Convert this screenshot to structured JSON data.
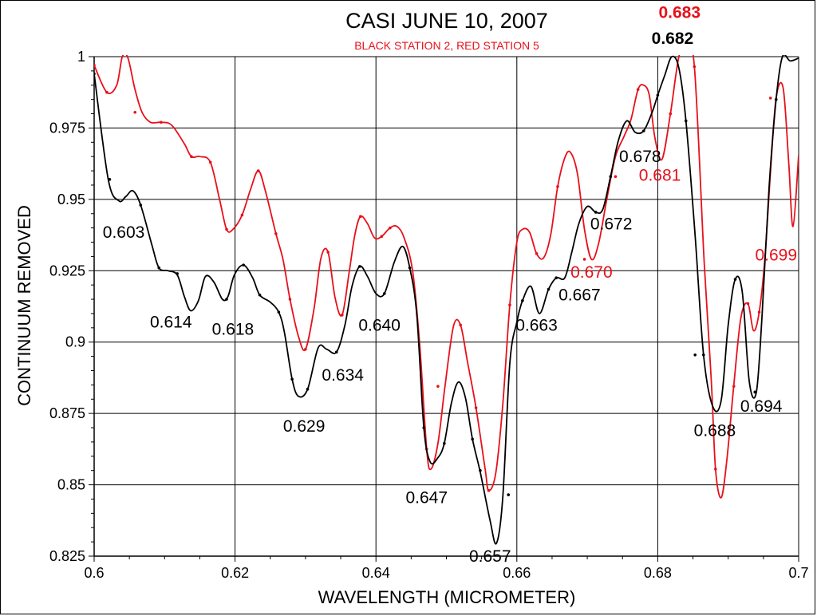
{
  "colors": {
    "station2": "#000000",
    "station5": "#e8101a",
    "grid": "#000000",
    "background": "#ffffff"
  },
  "chart_data": {
    "type": "line",
    "title": "CASI JUNE 10, 2007",
    "subtitle": "BLACK STATION 2, RED STATION 5",
    "xlabel": "WAVELENGTH (MICROMETER)",
    "ylabel": "CONTINUUM REMOVED",
    "xlim": [
      0.6,
      0.7
    ],
    "ylim": [
      0.825,
      1.0
    ],
    "grid": true,
    "x_ticks": [
      0.6,
      0.62,
      0.64,
      0.66,
      0.68,
      0.7
    ],
    "x_tick_labels": [
      "0.6",
      "0.62",
      "0.64",
      "0.66",
      "0.68",
      "0.7"
    ],
    "y_ticks": [
      0.825,
      0.85,
      0.875,
      0.9,
      0.925,
      0.95,
      0.975,
      1.0
    ],
    "y_tick_labels": [
      "0.825",
      "0.85",
      "0.875",
      "0.9",
      "0.925",
      "0.95",
      "0.975",
      "1"
    ],
    "series": [
      {
        "color": "#000000",
        "points": [
          [
            0.6,
            0.994
          ],
          [
            0.602,
            0.957
          ],
          [
            0.6035,
            0.9495
          ],
          [
            0.6045,
            0.951
          ],
          [
            0.6055,
            0.953
          ],
          [
            0.6066,
            0.948
          ],
          [
            0.6082,
            0.934
          ],
          [
            0.6092,
            0.926
          ],
          [
            0.6105,
            0.925
          ],
          [
            0.6118,
            0.9235
          ],
          [
            0.6128,
            0.916
          ],
          [
            0.6137,
            0.911
          ],
          [
            0.6148,
            0.9145
          ],
          [
            0.6158,
            0.923
          ],
          [
            0.617,
            0.921
          ],
          [
            0.6182,
            0.915
          ],
          [
            0.619,
            0.916
          ],
          [
            0.6199,
            0.9235
          ],
          [
            0.6212,
            0.927
          ],
          [
            0.6225,
            0.9225
          ],
          [
            0.6235,
            0.9165
          ],
          [
            0.625,
            0.914
          ],
          [
            0.6262,
            0.9105
          ],
          [
            0.627,
            0.9035
          ],
          [
            0.6281,
            0.887
          ],
          [
            0.629,
            0.881
          ],
          [
            0.6303,
            0.8835
          ],
          [
            0.6318,
            0.898
          ],
          [
            0.633,
            0.8975
          ],
          [
            0.6344,
            0.8965
          ],
          [
            0.6356,
            0.906
          ],
          [
            0.6366,
            0.9195
          ],
          [
            0.6377,
            0.9265
          ],
          [
            0.6388,
            0.923
          ],
          [
            0.64,
            0.917
          ],
          [
            0.6412,
            0.917
          ],
          [
            0.6426,
            0.928
          ],
          [
            0.6438,
            0.9335
          ],
          [
            0.6448,
            0.926
          ],
          [
            0.6458,
            0.9095
          ],
          [
            0.6468,
            0.87
          ],
          [
            0.6477,
            0.858
          ],
          [
            0.6488,
            0.8595
          ],
          [
            0.6497,
            0.8645
          ],
          [
            0.6507,
            0.8785
          ],
          [
            0.6517,
            0.886
          ],
          [
            0.6527,
            0.8805
          ],
          [
            0.6537,
            0.866
          ],
          [
            0.6548,
            0.8545
          ],
          [
            0.6562,
            0.8375
          ],
          [
            0.6571,
            0.8295
          ],
          [
            0.658,
            0.8455
          ],
          [
            0.659,
            0.8925
          ],
          [
            0.66,
            0.907
          ],
          [
            0.6608,
            0.9145
          ],
          [
            0.662,
            0.9195
          ],
          [
            0.6632,
            0.91
          ],
          [
            0.6645,
            0.9185
          ],
          [
            0.6656,
            0.9225
          ],
          [
            0.6668,
            0.9225
          ],
          [
            0.6678,
            0.9315
          ],
          [
            0.6688,
            0.9415
          ],
          [
            0.67,
            0.9475
          ],
          [
            0.6712,
            0.9455
          ],
          [
            0.6722,
            0.9465
          ],
          [
            0.6733,
            0.958
          ],
          [
            0.6744,
            0.9705
          ],
          [
            0.6756,
            0.9775
          ],
          [
            0.6768,
            0.9735
          ],
          [
            0.678,
            0.974
          ],
          [
            0.6792,
            0.9805
          ],
          [
            0.68,
            0.9865
          ],
          [
            0.681,
            0.9935
          ],
          [
            0.682,
            1.0
          ],
          [
            0.683,
            0.996
          ],
          [
            0.684,
            0.9775
          ],
          [
            0.6853,
            0.9375
          ],
          [
            0.6865,
            0.8955
          ],
          [
            0.6878,
            0.8775
          ],
          [
            0.689,
            0.8795
          ],
          [
            0.69,
            0.906
          ],
          [
            0.691,
            0.922
          ],
          [
            0.692,
            0.9175
          ],
          [
            0.693,
            0.886
          ],
          [
            0.694,
            0.8825
          ],
          [
            0.6948,
            0.909
          ],
          [
            0.6958,
            0.954
          ],
          [
            0.6968,
            0.985
          ],
          [
            0.6977,
            1.0
          ],
          [
            0.6988,
            0.9985
          ],
          [
            0.7,
            0.9995
          ]
        ],
        "markers": [
          [
            0.6,
            0.994
          ],
          [
            0.6022,
            0.957
          ],
          [
            0.6066,
            0.948
          ],
          [
            0.6092,
            0.926
          ],
          [
            0.6118,
            0.924
          ],
          [
            0.6188,
            0.915
          ],
          [
            0.6212,
            0.927
          ],
          [
            0.6235,
            0.9165
          ],
          [
            0.6262,
            0.9105
          ],
          [
            0.6281,
            0.887
          ],
          [
            0.6303,
            0.8835
          ],
          [
            0.6344,
            0.8965
          ],
          [
            0.6377,
            0.9265
          ],
          [
            0.6412,
            0.917
          ],
          [
            0.6448,
            0.926
          ],
          [
            0.6468,
            0.87
          ],
          [
            0.6497,
            0.8645
          ],
          [
            0.6537,
            0.866
          ],
          [
            0.6548,
            0.855
          ],
          [
            0.6588,
            0.8465
          ],
          [
            0.6608,
            0.9145
          ],
          [
            0.6645,
            0.9185
          ],
          [
            0.6656,
            0.9225
          ],
          [
            0.6712,
            0.9455
          ],
          [
            0.6733,
            0.958
          ],
          [
            0.678,
            0.974
          ],
          [
            0.68,
            0.9865
          ],
          [
            0.684,
            0.9775
          ],
          [
            0.6853,
            0.8955
          ],
          [
            0.6865,
            0.8955
          ],
          [
            0.691,
            0.922
          ],
          [
            0.6938,
            0.8825
          ],
          [
            0.6968,
            0.985
          ]
        ]
      },
      {
        "color": "#e8101a",
        "points": [
          [
            0.6,
            0.997
          ],
          [
            0.6018,
            0.9875
          ],
          [
            0.6032,
            0.99
          ],
          [
            0.604,
            1.0
          ],
          [
            0.6048,
            0.9995
          ],
          [
            0.6058,
            0.9885
          ],
          [
            0.6068,
            0.9805
          ],
          [
            0.608,
            0.977
          ],
          [
            0.6095,
            0.977
          ],
          [
            0.611,
            0.976
          ],
          [
            0.6128,
            0.9695
          ],
          [
            0.6138,
            0.965
          ],
          [
            0.615,
            0.965
          ],
          [
            0.6165,
            0.963
          ],
          [
            0.6178,
            0.95
          ],
          [
            0.6188,
            0.9395
          ],
          [
            0.6197,
            0.9395
          ],
          [
            0.621,
            0.9445
          ],
          [
            0.6222,
            0.9535
          ],
          [
            0.6233,
            0.96
          ],
          [
            0.6243,
            0.953
          ],
          [
            0.6258,
            0.938
          ],
          [
            0.6268,
            0.929
          ],
          [
            0.6278,
            0.915
          ],
          [
            0.629,
            0.902
          ],
          [
            0.63,
            0.8975
          ],
          [
            0.6312,
            0.9115
          ],
          [
            0.6322,
            0.9295
          ],
          [
            0.6332,
            0.9315
          ],
          [
            0.6342,
            0.9155
          ],
          [
            0.6352,
            0.9095
          ],
          [
            0.6362,
            0.9245
          ],
          [
            0.637,
            0.9375
          ],
          [
            0.6378,
            0.944
          ],
          [
            0.6388,
            0.9415
          ],
          [
            0.6398,
            0.9365
          ],
          [
            0.6408,
            0.937
          ],
          [
            0.642,
            0.94
          ],
          [
            0.643,
            0.9405
          ],
          [
            0.644,
            0.9365
          ],
          [
            0.6452,
            0.925
          ],
          [
            0.6462,
            0.8995
          ],
          [
            0.6472,
            0.8625
          ],
          [
            0.6478,
            0.8555
          ],
          [
            0.6488,
            0.8645
          ],
          [
            0.6498,
            0.8845
          ],
          [
            0.651,
            0.9055
          ],
          [
            0.652,
            0.906
          ],
          [
            0.653,
            0.893
          ],
          [
            0.6542,
            0.877
          ],
          [
            0.6555,
            0.8555
          ],
          [
            0.656,
            0.848
          ],
          [
            0.657,
            0.854
          ],
          [
            0.658,
            0.878
          ],
          [
            0.659,
            0.913
          ],
          [
            0.66,
            0.935
          ],
          [
            0.6608,
            0.9395
          ],
          [
            0.6618,
            0.9385
          ],
          [
            0.6628,
            0.931
          ],
          [
            0.6638,
            0.9295
          ],
          [
            0.6648,
            0.9375
          ],
          [
            0.6658,
            0.9545
          ],
          [
            0.6668,
            0.9645
          ],
          [
            0.6676,
            0.9665
          ],
          [
            0.6686,
            0.959
          ],
          [
            0.6696,
            0.9395
          ],
          [
            0.6706,
            0.929
          ],
          [
            0.6716,
            0.9345
          ],
          [
            0.6728,
            0.9505
          ],
          [
            0.674,
            0.965
          ],
          [
            0.6752,
            0.972
          ],
          [
            0.6762,
            0.978
          ],
          [
            0.6772,
            0.9885
          ],
          [
            0.678,
            0.99
          ],
          [
            0.6788,
            0.9865
          ],
          [
            0.6796,
            0.9715
          ],
          [
            0.6806,
            0.964
          ],
          [
            0.6818,
            0.98
          ],
          [
            0.683,
            1.0
          ],
          [
            0.684,
            1.003
          ],
          [
            0.6852,
            0.9965
          ],
          [
            0.6866,
            0.9275
          ],
          [
            0.6876,
            0.8865
          ],
          [
            0.6882,
            0.8555
          ],
          [
            0.689,
            0.8455
          ],
          [
            0.6898,
            0.8585
          ],
          [
            0.6908,
            0.885
          ],
          [
            0.6918,
            0.9085
          ],
          [
            0.6928,
            0.9135
          ],
          [
            0.6936,
            0.904
          ],
          [
            0.6944,
            0.9105
          ],
          [
            0.6952,
            0.929
          ],
          [
            0.696,
            0.9595
          ],
          [
            0.6968,
            0.9855
          ],
          [
            0.6978,
            0.989
          ],
          [
            0.6986,
            0.9625
          ],
          [
            0.6992,
            0.9405
          ],
          [
            0.7,
            0.9655
          ]
        ],
        "markers": [
          [
            0.6,
            0.997
          ],
          [
            0.6018,
            0.9875
          ],
          [
            0.6058,
            0.9805
          ],
          [
            0.6095,
            0.977
          ],
          [
            0.6138,
            0.965
          ],
          [
            0.6165,
            0.963
          ],
          [
            0.6188,
            0.9395
          ],
          [
            0.621,
            0.9445
          ],
          [
            0.6233,
            0.96
          ],
          [
            0.6258,
            0.938
          ],
          [
            0.6278,
            0.915
          ],
          [
            0.63,
            0.8975
          ],
          [
            0.6332,
            0.9315
          ],
          [
            0.6352,
            0.9095
          ],
          [
            0.6378,
            0.944
          ],
          [
            0.6408,
            0.937
          ],
          [
            0.642,
            0.94
          ],
          [
            0.6472,
            0.8625
          ],
          [
            0.6488,
            0.8845
          ],
          [
            0.652,
            0.906
          ],
          [
            0.6542,
            0.877
          ],
          [
            0.656,
            0.848
          ],
          [
            0.659,
            0.913
          ],
          [
            0.6628,
            0.931
          ],
          [
            0.6658,
            0.9545
          ],
          [
            0.6696,
            0.929
          ],
          [
            0.674,
            0.958
          ],
          [
            0.6772,
            0.9885
          ],
          [
            0.6818,
            0.98
          ],
          [
            0.6852,
            0.9965
          ],
          [
            0.6882,
            0.8555
          ],
          [
            0.6908,
            0.8845
          ],
          [
            0.6928,
            0.9135
          ],
          [
            0.6944,
            0.9105
          ],
          [
            0.696,
            0.9855
          ]
        ]
      }
    ],
    "annotations": [
      {
        "text": "0.603",
        "x": 0.6042,
        "y": 0.9385,
        "color": "#000000"
      },
      {
        "text": "0.614",
        "x": 0.6109,
        "y": 0.907,
        "color": "#000000"
      },
      {
        "text": "0.618",
        "x": 0.6197,
        "y": 0.9045,
        "color": "#000000"
      },
      {
        "text": "0.629",
        "x": 0.6298,
        "y": 0.8705,
        "color": "#000000"
      },
      {
        "text": "0.634",
        "x": 0.6353,
        "y": 0.8885,
        "color": "#000000"
      },
      {
        "text": "0.640",
        "x": 0.6405,
        "y": 0.906,
        "color": "#000000"
      },
      {
        "text": "0.647",
        "x": 0.6472,
        "y": 0.8455,
        "color": "#000000"
      },
      {
        "text": "0.657",
        "x": 0.6562,
        "y": 0.825,
        "color": "#000000"
      },
      {
        "text": "0.663",
        "x": 0.6628,
        "y": 0.906,
        "color": "#000000"
      },
      {
        "text": "0.667",
        "x": 0.6689,
        "y": 0.9165,
        "color": "#000000"
      },
      {
        "text": "0.670",
        "x": 0.6706,
        "y": 0.9245,
        "color": "#e8101a"
      },
      {
        "text": "0.672",
        "x": 0.6734,
        "y": 0.9415,
        "color": "#000000"
      },
      {
        "text": "0.678",
        "x": 0.6775,
        "y": 0.965,
        "color": "#000000"
      },
      {
        "text": "0.681",
        "x": 0.6803,
        "y": 0.9585,
        "color": "#e8101a"
      },
      {
        "text": "0.688",
        "x": 0.6881,
        "y": 0.869,
        "color": "#000000"
      },
      {
        "text": "0.694",
        "x": 0.6947,
        "y": 0.8775,
        "color": "#000000"
      },
      {
        "text": "0.699",
        "x": 0.6968,
        "y": 0.9305,
        "color": "#e8101a"
      }
    ],
    "peak_labels": [
      {
        "text": "0.683",
        "x": 0.6831,
        "y": 1.0135,
        "color": "#e8101a"
      },
      {
        "text": "0.682",
        "x": 0.6821,
        "y": 1.0045,
        "color": "#000000"
      }
    ]
  }
}
